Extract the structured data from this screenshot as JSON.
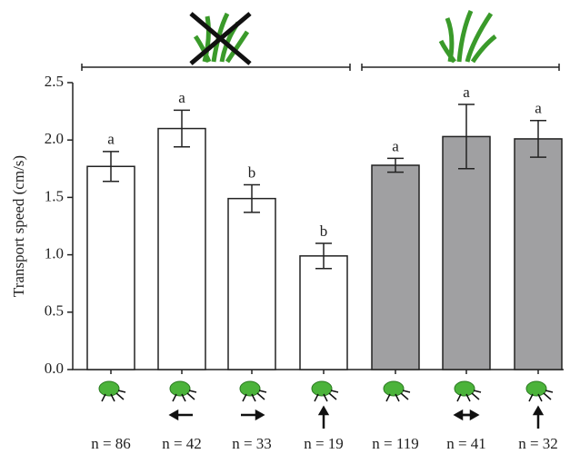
{
  "chart_data": {
    "type": "bar",
    "y_label": "Transport speed (cm/s)",
    "categories": [
      "n = 86",
      "n = 42",
      "n = 33",
      "n = 19",
      "n = 119",
      "n = 41",
      "n = 32"
    ],
    "values": [
      1.77,
      2.1,
      1.49,
      0.99,
      1.78,
      2.03,
      2.01
    ],
    "errors": [
      0.13,
      0.16,
      0.12,
      0.11,
      0.06,
      0.28,
      0.16
    ],
    "letters": [
      "a",
      "a",
      "b",
      "b",
      "a",
      "a",
      "a"
    ],
    "colors": [
      "#ffffff",
      "#ffffff",
      "#ffffff",
      "#ffffff",
      "#a0a0a2",
      "#a0a0a2",
      "#a0a0a2"
    ],
    "ylim": [
      0,
      2.5
    ],
    "yticks": [
      {
        "value": 0,
        "label": "0.0"
      },
      {
        "value": 0.5,
        "label": "0.5"
      },
      {
        "value": 1,
        "label": "1.0"
      },
      {
        "value": 1.5,
        "label": "1.5"
      },
      {
        "value": 2,
        "label": "2.0"
      },
      {
        "value": 2.5,
        "label": "2.5"
      }
    ]
  }
}
